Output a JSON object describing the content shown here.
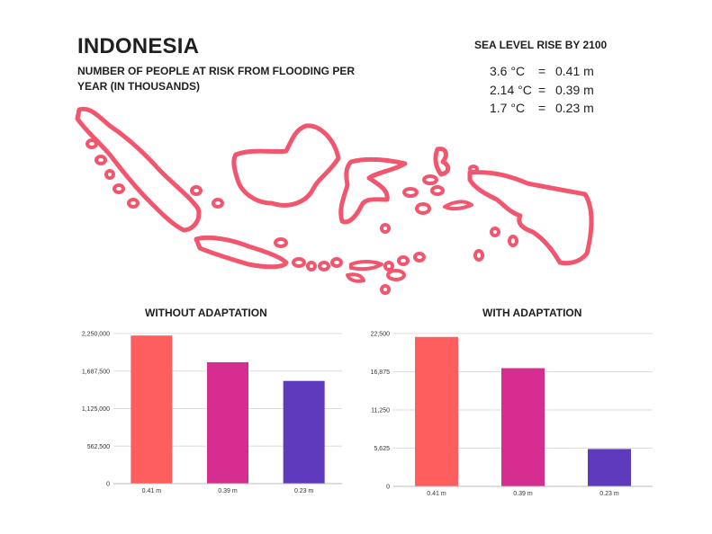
{
  "title": "INDONESIA",
  "subtitle": "NUMBER OF PEOPLE AT RISK FROM FLOODING PER YEAR (IN THOUSANDS)",
  "sea_level": {
    "title": "SEA LEVEL RISE BY 2100",
    "rows": [
      {
        "temp": "3.6 °C",
        "eq": "=",
        "rise": "0.41 m"
      },
      {
        "temp": "2.14 °C",
        "eq": "=",
        "rise": "0.39 m"
      },
      {
        "temp": "1.7 °C",
        "eq": "=",
        "rise": "0.23 m"
      }
    ]
  },
  "map": {
    "icon": "indonesia-map-outline-icon",
    "color": "#f2566e"
  },
  "chart_data": [
    {
      "type": "bar",
      "title": "WITHOUT ADAPTATION",
      "categories": [
        "0.41 m",
        "0.39 m",
        "0.23 m"
      ],
      "values": [
        2220000,
        1820000,
        1540000
      ],
      "colors": [
        "#ff5e5e",
        "#d62e90",
        "#5e3bbd"
      ],
      "ylim": [
        0,
        2250000
      ],
      "yticks": [
        0,
        562500,
        1125000,
        1687500,
        2250000
      ],
      "ytick_labels": [
        "0",
        "562,500",
        "1,125,000",
        "1,687,500",
        "2,250,000"
      ],
      "grid": true
    },
    {
      "type": "bar",
      "title": "WITH ADAPTATION",
      "categories": [
        "0.41 m",
        "0.39 m",
        "0.23 m"
      ],
      "values": [
        22000,
        17400,
        5500
      ],
      "colors": [
        "#ff5e5e",
        "#d62e90",
        "#5e3bbd"
      ],
      "ylim": [
        0,
        22500
      ],
      "yticks": [
        0,
        5625,
        11250,
        16875,
        22500
      ],
      "ytick_labels": [
        "0",
        "5,625",
        "11,250",
        "16,875",
        "22,500"
      ],
      "grid": true
    }
  ]
}
